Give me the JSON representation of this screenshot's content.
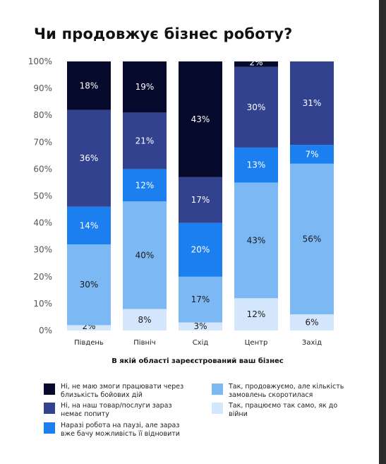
{
  "title": "Чи продовжує бізнес роботу?",
  "chart_data": {
    "type": "bar",
    "stacked": true,
    "title": "Чи продовжує бізнес роботу?",
    "xlabel": "В якій області зареєстрований ваш бізнес",
    "ylabel": "",
    "ylim": [
      0,
      100
    ],
    "yticks": [
      "0%",
      "10%",
      "20%",
      "30%",
      "40%",
      "50%",
      "60%",
      "70%",
      "80%",
      "90%",
      "100%"
    ],
    "categories": [
      "Південь",
      "Північ",
      "Схід",
      "Центр",
      "Захід"
    ],
    "grid": false,
    "legend_position": "bottom",
    "series": [
      {
        "name": "Так, працюємо так само, як до війни",
        "color": "#d4e6fb",
        "values": [
          2,
          8,
          3,
          12,
          6
        ],
        "labels": [
          "2%",
          "8%",
          "3%",
          "12%",
          "6%"
        ]
      },
      {
        "name": "Так, продовжуємо, але кількість замовлень скоротилася",
        "color": "#7cb8f3",
        "values": [
          30,
          40,
          17,
          43,
          56
        ],
        "labels": [
          "30%",
          "40%",
          "17%",
          "43%",
          "56%"
        ]
      },
      {
        "name": "Наразі робота на паузі, але зараз вже бачу можливість її відновити",
        "color": "#1b7ff0",
        "values": [
          14,
          12,
          20,
          13,
          7
        ],
        "labels": [
          "14%",
          "12%",
          "20%",
          "13%",
          "7%"
        ]
      },
      {
        "name": "Ні, на наш товар/послуги зараз немає попиту",
        "color": "#33428f",
        "values": [
          36,
          21,
          17,
          30,
          31
        ],
        "labels": [
          "36%",
          "21%",
          "17%",
          "30%",
          "31%"
        ]
      },
      {
        "name": "Ні, не маю змоги працювати через близькість бойових дій",
        "color": "#050a2c",
        "values": [
          18,
          19,
          43,
          2,
          0
        ],
        "labels": [
          "18%",
          "19%",
          "43%",
          "2%",
          ""
        ]
      }
    ]
  },
  "legend": {
    "items": [
      {
        "label": "Ні, не маю змоги працювати через близькість бойових дій",
        "color": "#050a2c"
      },
      {
        "label": "Ні, на наш товар/послуги зараз немає попиту",
        "color": "#33428f"
      },
      {
        "label": "Наразі робота на паузі, але зараз вже бачу можливість її відновити",
        "color": "#1b7ff0"
      },
      {
        "label": "Так, продовжуємо, але кількість замовлень скоротилася",
        "color": "#7cb8f3"
      },
      {
        "label": "Так, працюємо так само, як до війни",
        "color": "#d4e6fb"
      }
    ]
  }
}
